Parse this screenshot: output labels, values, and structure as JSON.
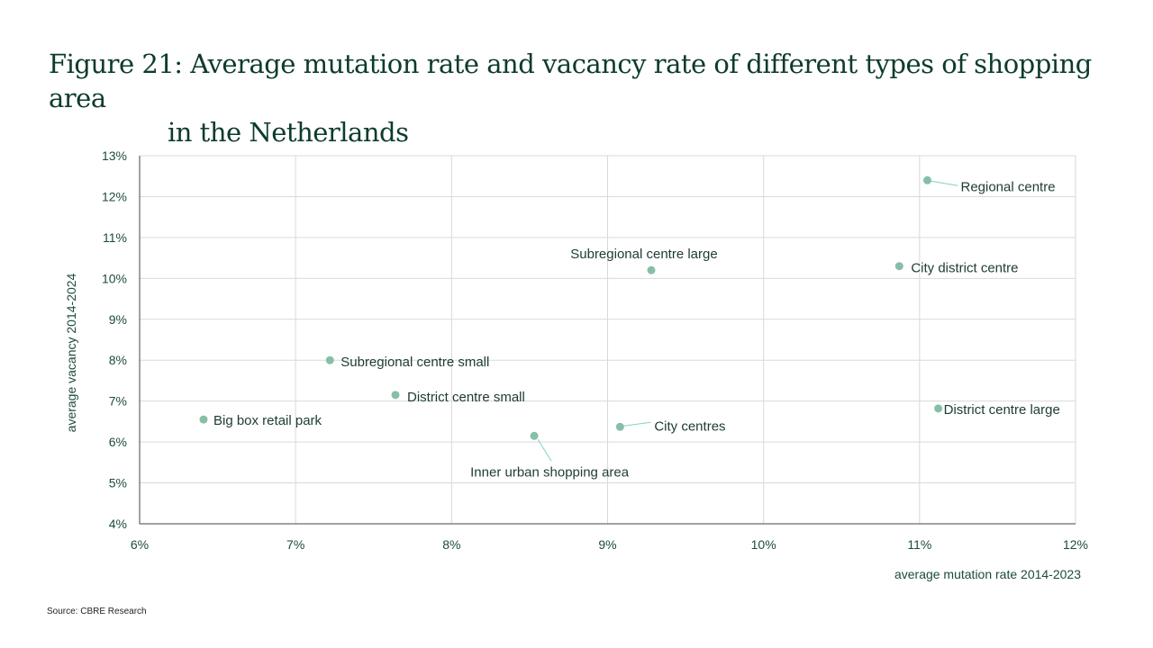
{
  "title_line1": "Figure 21: Average mutation rate and vacancy  rate of different types of shopping area",
  "title_line2": "in the Netherlands",
  "source": "Source: CBRE Research",
  "colors": {
    "point": "#86bfa6",
    "leader": "#7fd4c0",
    "grid": "#d9d9d9",
    "text": "#1d4b3d",
    "title": "#0d3b2e"
  },
  "chart_data": {
    "type": "scatter",
    "xlabel": "average mutation rate 2014-2023",
    "ylabel": "average vacancy 2014-2024",
    "xlim": [
      6,
      12
    ],
    "ylim": [
      4,
      13
    ],
    "x_ticks": [
      "6%",
      "7%",
      "8%",
      "9%",
      "10%",
      "11%",
      "12%"
    ],
    "y_ticks": [
      "4%",
      "5%",
      "6%",
      "7%",
      "8%",
      "9%",
      "10%",
      "11%",
      "12%",
      "13%"
    ],
    "grid": true,
    "points": [
      {
        "label": "Regional centre",
        "x": 11.05,
        "y": 12.4
      },
      {
        "label": "Subregional centre large",
        "x": 9.28,
        "y": 10.2
      },
      {
        "label": "City district centre",
        "x": 10.87,
        "y": 10.3
      },
      {
        "label": "Subregional centre small",
        "x": 7.22,
        "y": 8.0
      },
      {
        "label": "District centre small",
        "x": 7.64,
        "y": 7.15
      },
      {
        "label": "Big box retail park",
        "x": 6.41,
        "y": 6.55
      },
      {
        "label": "District centre large",
        "x": 11.12,
        "y": 6.82
      },
      {
        "label": "City centres",
        "x": 9.08,
        "y": 6.37
      },
      {
        "label": "Inner urban shopping area",
        "x": 8.53,
        "y": 6.15
      }
    ]
  }
}
